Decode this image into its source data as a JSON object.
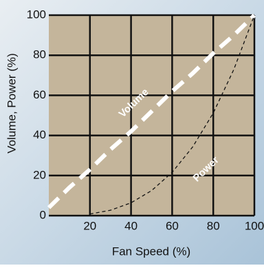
{
  "chart_data": {
    "type": "line",
    "x_label": "Fan Speed (%)",
    "y_label": "Volume, Power (%)",
    "x": [
      0,
      10,
      20,
      30,
      40,
      50,
      60,
      70,
      80,
      90,
      100
    ],
    "series": [
      {
        "name": "Volume",
        "color": "#ffffff",
        "values": [
          4,
          14,
          23,
          33,
          42,
          52,
          62,
          71,
          81,
          90,
          100
        ]
      },
      {
        "name": "Power",
        "color": "#111111",
        "values": [
          null,
          null,
          0.8,
          2.7,
          6.4,
          12.5,
          21.6,
          34.3,
          51.2,
          72.9,
          100
        ]
      }
    ],
    "xlim": [
      0,
      100
    ],
    "ylim": [
      0,
      100
    ],
    "xticks": [
      20,
      40,
      60,
      80,
      100
    ],
    "yticks": [
      0,
      20,
      40,
      60,
      80,
      100
    ],
    "grid": true,
    "plot_color": "#c4b59b"
  }
}
